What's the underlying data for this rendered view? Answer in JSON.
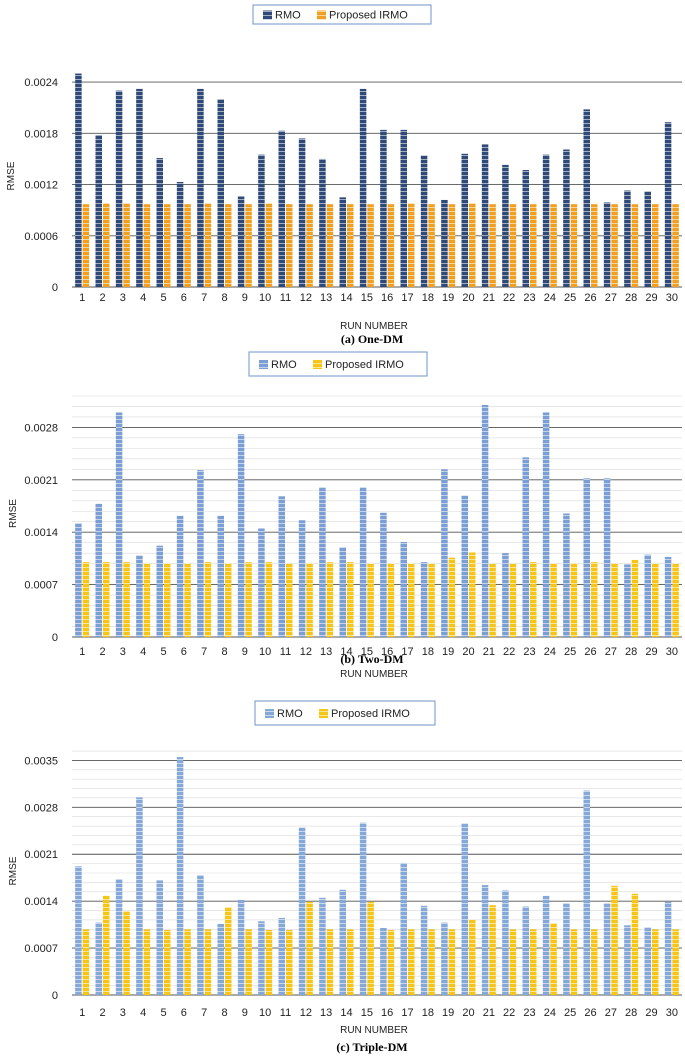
{
  "colors": {
    "rmo_a": "#2f4a78",
    "irmo_a": "#f0a020",
    "rmo_b": "#7b9ed4",
    "irmo_b": "#f5c518",
    "rmo_c": "#85a8d8",
    "irmo_c": "#f5c518",
    "grid": "#555555",
    "grid_minor": "#d9d9d9"
  },
  "chart_data": [
    {
      "type": "bar",
      "title": "",
      "caption": "(a) One-DM",
      "xlabel": "RUN NUMBER",
      "ylabel": "RMSE",
      "ylim": [
        0,
        0.0026
      ],
      "yticks": [
        "0",
        "0.0006",
        "0.0012",
        "0.0018",
        "0.0024"
      ],
      "ytick_values": [
        0,
        0.0006,
        0.0012,
        0.0018,
        0.0024
      ],
      "legend": [
        "RMO",
        "Proposed IRMO"
      ],
      "legend_position": "top-center",
      "categories": [
        "1",
        "2",
        "3",
        "4",
        "5",
        "6",
        "7",
        "8",
        "9",
        "10",
        "11",
        "12",
        "13",
        "14",
        "15",
        "16",
        "17",
        "18",
        "19",
        "20",
        "21",
        "22",
        "23",
        "24",
        "25",
        "26",
        "27",
        "28",
        "29",
        "30"
      ],
      "series": [
        {
          "name": "RMO",
          "values": [
            0.0025,
            0.00178,
            0.0023,
            0.00232,
            0.00151,
            0.00123,
            0.00232,
            0.0022,
            0.00106,
            0.00155,
            0.00183,
            0.00174,
            0.0015,
            0.00105,
            0.00232,
            0.00184,
            0.00184,
            0.00154,
            0.00102,
            0.00156,
            0.00167,
            0.00143,
            0.00137,
            0.00155,
            0.00161,
            0.00208,
            0.00099,
            0.00113,
            0.00112,
            0.00193
          ]
        },
        {
          "name": "Proposed IRMO",
          "values": [
            0.00097,
            0.00098,
            0.00098,
            0.00097,
            0.00097,
            0.00097,
            0.00098,
            0.00097,
            0.00097,
            0.00098,
            0.00097,
            0.00097,
            0.00097,
            0.00097,
            0.00097,
            0.00097,
            0.00098,
            0.00097,
            0.00097,
            0.00098,
            0.00097,
            0.00097,
            0.00097,
            0.00097,
            0.00097,
            0.00097,
            0.00097,
            0.00097,
            0.00097,
            0.00097
          ]
        }
      ]
    },
    {
      "type": "bar",
      "title": "",
      "caption": "(b) Two-DM",
      "xlabel": "RUN NUMBER",
      "ylabel": "RMSE",
      "ylim": [
        0,
        0.0033
      ],
      "yticks": [
        "0",
        "0.0007",
        "0.0014",
        "0.0021",
        "0.0028"
      ],
      "ytick_values": [
        0,
        0.0007,
        0.0014,
        0.0021,
        0.0028
      ],
      "legend": [
        "RMO",
        "Proposed IRMO"
      ],
      "legend_position": "top-center",
      "categories": [
        "1",
        "2",
        "3",
        "4",
        "5",
        "6",
        "7",
        "8",
        "9",
        "10",
        "11",
        "12",
        "13",
        "14",
        "15",
        "16",
        "17",
        "18",
        "19",
        "20",
        "21",
        "22",
        "23",
        "24",
        "25",
        "26",
        "27",
        "28",
        "29",
        "30"
      ],
      "series": [
        {
          "name": "RMO",
          "values": [
            0.00152,
            0.00178,
            0.003,
            0.00109,
            0.00122,
            0.00162,
            0.00223,
            0.00162,
            0.00271,
            0.00145,
            0.00188,
            0.00156,
            0.002,
            0.0012,
            0.002,
            0.00166,
            0.00127,
            0.001,
            0.00224,
            0.00189,
            0.0031,
            0.00112,
            0.0024,
            0.003,
            0.00165,
            0.00212,
            0.00212,
            0.00097,
            0.0011,
            0.00107
          ]
        },
        {
          "name": "Proposed IRMO",
          "values": [
            0.001,
            0.001,
            0.001,
            0.00098,
            0.00098,
            0.00098,
            0.001,
            0.00098,
            0.001,
            0.001,
            0.00098,
            0.00098,
            0.001,
            0.001,
            0.00098,
            0.00098,
            0.00098,
            0.00098,
            0.00106,
            0.00113,
            0.00098,
            0.00098,
            0.001,
            0.00098,
            0.00098,
            0.001,
            0.00098,
            0.00103,
            0.00098,
            0.00098
          ]
        }
      ]
    },
    {
      "type": "bar",
      "title": "",
      "caption": "(c) Triple-DM",
      "xlabel": "RUN NUMBER",
      "ylabel": "RMSE",
      "ylim": [
        0,
        0.0037
      ],
      "yticks": [
        "0",
        "0.0007",
        "0.0014",
        "0.0021",
        "0.0028",
        "0.0035"
      ],
      "ytick_values": [
        0,
        0.0007,
        0.0014,
        0.0021,
        0.0028,
        0.0035
      ],
      "legend": [
        "RMO",
        "Proposed IRMO"
      ],
      "legend_position": "top-center",
      "categories": [
        "1",
        "2",
        "3",
        "4",
        "5",
        "6",
        "7",
        "8",
        "9",
        "10",
        "11",
        "12",
        "13",
        "14",
        "15",
        "16",
        "17",
        "18",
        "19",
        "20",
        "21",
        "22",
        "23",
        "24",
        "25",
        "26",
        "27",
        "28",
        "29",
        "30"
      ],
      "series": [
        {
          "name": "RMO",
          "values": [
            0.00192,
            0.00108,
            0.00173,
            0.00295,
            0.00171,
            0.00355,
            0.00179,
            0.00106,
            0.00142,
            0.0011,
            0.00115,
            0.0025,
            0.00145,
            0.00157,
            0.00257,
            0.001,
            0.00197,
            0.00133,
            0.00108,
            0.00256,
            0.00164,
            0.00156,
            0.00132,
            0.00148,
            0.00137,
            0.00305,
            0.00137,
            0.00104,
            0.00101,
            0.00139
          ]
        },
        {
          "name": "Proposed IRMO",
          "values": [
            0.00098,
            0.00148,
            0.00125,
            0.00098,
            0.00097,
            0.00098,
            0.00098,
            0.00131,
            0.00098,
            0.00097,
            0.00097,
            0.00139,
            0.00098,
            0.00098,
            0.00139,
            0.00097,
            0.00098,
            0.00098,
            0.00098,
            0.00112,
            0.00134,
            0.00098,
            0.00098,
            0.00107,
            0.00098,
            0.00098,
            0.00163,
            0.00151,
            0.00098,
            0.00098
          ]
        }
      ]
    }
  ]
}
